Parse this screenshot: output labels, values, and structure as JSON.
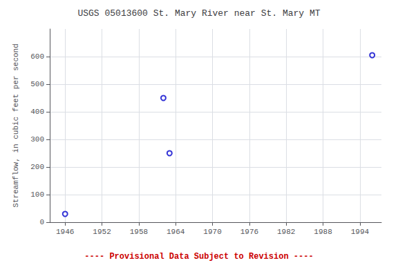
{
  "chart_data": {
    "type": "scatter",
    "title": "USGS 05013600 St. Mary River near St. Mary MT",
    "ylabel": "Streamflow, in cubic feet per second",
    "x": [
      1946,
      1962,
      1963,
      1996
    ],
    "values": [
      30,
      450,
      250,
      605
    ],
    "color": "#0000cc",
    "marker": "open circle",
    "xlim": [
      1943.5,
      1997.5
    ],
    "ylim": [
      0,
      700
    ],
    "xticks": [
      1946,
      1952,
      1958,
      1964,
      1970,
      1976,
      1982,
      1988,
      1994
    ],
    "yticks": [
      0,
      100,
      200,
      300,
      400,
      500,
      600
    ],
    "grid": true,
    "annotations": [
      {
        "text": "---- Provisional Data Subject to Revision ----",
        "color": "#cc0000"
      }
    ]
  }
}
